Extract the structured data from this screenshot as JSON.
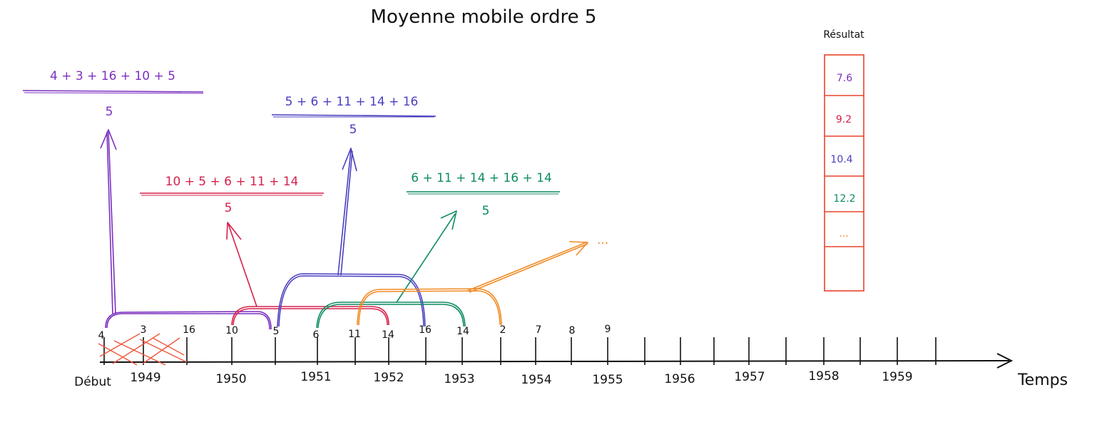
{
  "title": "Moyenne mobile ordre 5",
  "axis": {
    "start_label": "Début",
    "end_label": "Temps",
    "years": [
      "1949",
      "1950",
      "1951",
      "1952",
      "1953",
      "1954",
      "1955",
      "1956",
      "1957",
      "1958",
      "1959"
    ],
    "point_values": [
      "4",
      "3",
      "16",
      "10",
      "5",
      "6",
      "11",
      "14",
      "16",
      "14",
      "2",
      "7",
      "8",
      "9"
    ]
  },
  "formulas": [
    {
      "numerator": "4 + 3 + 16 + 10 + 5",
      "denominator": "5",
      "color": "#7b2fbf"
    },
    {
      "numerator": "10 + 5 + 6 + 11 + 14",
      "denominator": "5",
      "color": "#d6204a"
    },
    {
      "numerator": "5 + 6 + 11 + 14 + 16",
      "denominator": "5",
      "color": "#4a3fbf"
    },
    {
      "numerator": "6 + 11 + 14 + 16 + 14",
      "denominator": "5",
      "color": "#0e8c63"
    }
  ],
  "continuation": {
    "text": "...",
    "color": "#f08a24"
  },
  "result": {
    "header": "Résultat",
    "border_color": "#e8432c",
    "cells": [
      {
        "value": "7.6",
        "color": "#7b2fbf"
      },
      {
        "value": "9.2",
        "color": "#d6204a"
      },
      {
        "value": "10.4",
        "color": "#4a3fbf"
      },
      {
        "value": "12.2",
        "color": "#0e8c63"
      },
      {
        "value": "...",
        "color": "#f08a24"
      },
      {
        "value": "",
        "color": "#111111"
      }
    ]
  }
}
